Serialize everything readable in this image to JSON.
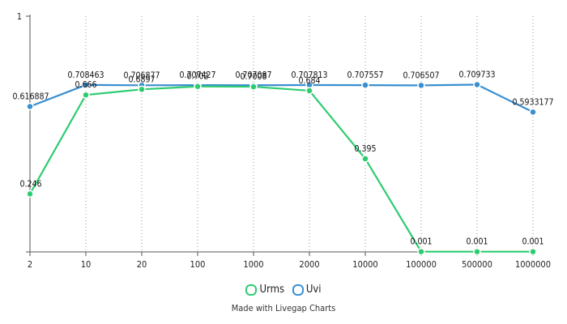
{
  "chart_data": {
    "type": "line",
    "categories": [
      "2",
      "10",
      "20",
      "100",
      "1000",
      "2000",
      "10000",
      "100000",
      "500000",
      "1000000"
    ],
    "series": [
      {
        "name": "Urms",
        "color": "#2ecc71",
        "values": [
          0.246,
          0.666,
          0.6897,
          0.702,
          0.7008,
          0.684,
          0.395,
          0.001,
          0.001,
          0.001
        ],
        "labels": [
          "0.246",
          "0.666",
          "0.6897",
          "0.702",
          "0.7008",
          "0.684",
          "0.395",
          "0.001",
          "0.001",
          "0.001"
        ]
      },
      {
        "name": "Uvi",
        "color": "#3a8fd0",
        "values": [
          0.616887,
          0.708463,
          0.706877,
          0.707427,
          0.707087,
          0.707813,
          0.707557,
          0.706507,
          0.709733,
          0.5933177
        ],
        "labels": [
          "0.616887",
          "0.708463",
          "0.706877",
          "0.707427",
          "0.707087",
          "0.707813",
          "0.707557",
          "0.706507",
          "0.709733",
          "0.5933177"
        ]
      }
    ],
    "y_ticks": [
      "1"
    ],
    "ylim": [
      0,
      1
    ],
    "grid": "vertical-dotted"
  },
  "legend": {
    "items": [
      {
        "label": "Urms",
        "color": "#2ecc71"
      },
      {
        "label": "Uvi",
        "color": "#3a8fd0"
      }
    ]
  },
  "footer": "Made with Livegap Charts"
}
